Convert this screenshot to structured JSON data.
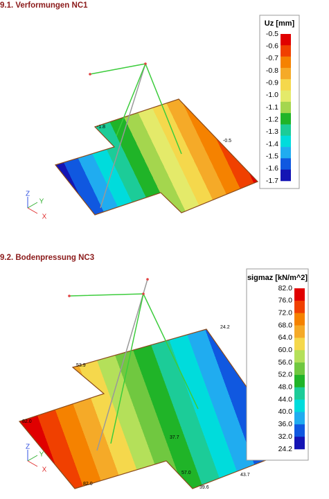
{
  "sections": [
    {
      "title": "9.1. Verformungen NC1",
      "legend": {
        "title": "Uz [mm]",
        "labels": [
          "-0.5",
          "-0.6",
          "-0.7",
          "-0.8",
          "-0.9",
          "-1.0",
          "-1.1",
          "-1.2",
          "-1.3",
          "-1.4",
          "-1.5",
          "-1.6",
          "-1.7"
        ],
        "colors": [
          "#e00000",
          "#f04000",
          "#f58200",
          "#f5aa28",
          "#f5d84c",
          "#e4ea6a",
          "#a4d64e",
          "#20b428",
          "#1ccc98",
          "#00dcdc",
          "#20acf0",
          "#1058e0",
          "#1414b4"
        ]
      },
      "annotations": [
        "-1.8",
        "-0.5"
      ],
      "axes": [
        "Z",
        "Y",
        "X"
      ]
    },
    {
      "title": "9.2. Bodenpressung NC3",
      "legend": {
        "title": "sigmaz [kN/m^2]",
        "labels": [
          "82.0",
          "76.0",
          "72.0",
          "68.0",
          "64.0",
          "60.0",
          "56.0",
          "52.0",
          "48.0",
          "44.0",
          "40.0",
          "36.0",
          "32.0",
          "24.2"
        ],
        "colors": [
          "#e00000",
          "#f04000",
          "#f58200",
          "#f5aa28",
          "#f5d84c",
          "#b4e05a",
          "#70c840",
          "#20b428",
          "#1ccc98",
          "#00dcdc",
          "#20acf0",
          "#1058e0",
          "#1414b4"
        ]
      },
      "annotations": [
        "53.9",
        "24.2",
        "82.0",
        "82.0",
        "37.7",
        "57.0",
        "43.7",
        "39.6"
      ],
      "axes": [
        "Z",
        "Y",
        "X"
      ]
    }
  ]
}
